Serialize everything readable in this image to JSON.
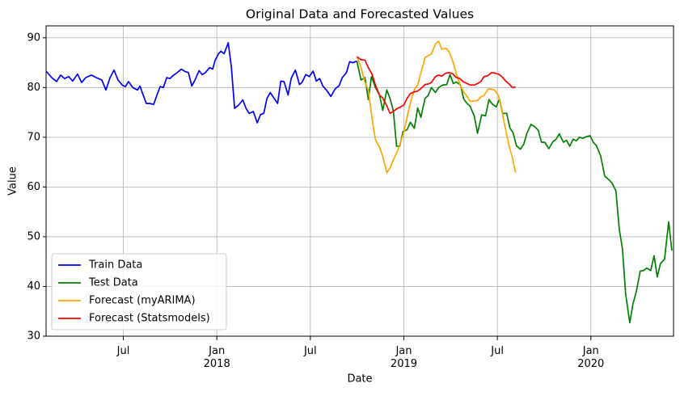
{
  "chart_data": {
    "type": "line",
    "title": "Original Data and Forecasted Values",
    "xlabel": "Date",
    "ylabel": "Value",
    "xlim": [
      2017.087,
      2020.442
    ],
    "ylim": [
      30,
      92.4
    ],
    "xticks": [
      {
        "value": 2017.5,
        "label": "Jul"
      },
      {
        "value": 2018.0,
        "label": "Jan\n2018"
      },
      {
        "value": 2018.5,
        "label": "Jul"
      },
      {
        "value": 2019.0,
        "label": "Jan\n2019"
      },
      {
        "value": 2019.5,
        "label": "Jul"
      },
      {
        "value": 2020.0,
        "label": "Jan\n2020"
      }
    ],
    "yticks": [
      30,
      40,
      50,
      60,
      70,
      80,
      90
    ],
    "grid": true,
    "legend": "lower left",
    "series": [
      {
        "name": "Train Data",
        "color": "#0000ff",
        "x": [
          2017.087,
          2017.117,
          2017.143,
          2017.165,
          2017.186,
          2017.208,
          2017.229,
          2017.255,
          2017.277,
          2017.299,
          2017.329,
          2017.355,
          2017.385,
          2017.407,
          2017.429,
          2017.45,
          2017.472,
          2017.494,
          2017.511,
          2017.528,
          2017.55,
          2017.576,
          2017.589,
          2017.606,
          2017.623,
          2017.641,
          2017.662,
          2017.68,
          2017.697,
          2017.714,
          2017.732,
          2017.749,
          2017.766,
          2017.788,
          2017.81,
          2017.831,
          2017.848,
          2017.866,
          2017.883,
          2017.905,
          2017.922,
          2017.939,
          2017.961,
          2017.978,
          2017.991,
          2018.009,
          2018.022,
          2018.039,
          2018.061,
          2018.078,
          2018.095,
          2018.117,
          2018.139,
          2018.156,
          2018.173,
          2018.195,
          2018.216,
          2018.234,
          2018.251,
          2018.268,
          2018.286,
          2018.303,
          2018.325,
          2018.342,
          2018.359,
          2018.381,
          2018.398,
          2018.42,
          2018.442,
          2018.455,
          2018.476,
          2018.494,
          2018.515,
          2018.532,
          2018.55,
          2018.567,
          2018.584,
          2018.61,
          2018.632,
          2018.654,
          2018.671,
          2018.693,
          2018.71,
          2018.727,
          2018.749
        ],
        "values": [
          83.3,
          82,
          81.2,
          82.5,
          81.8,
          82.2,
          81.3,
          82.7,
          81,
          82,
          82.5,
          82,
          81.5,
          79.5,
          82,
          83.5,
          81.5,
          80.5,
          80.2,
          81.2,
          80,
          79.5,
          80.3,
          78.5,
          76.8,
          76.8,
          76.6,
          78.5,
          80.2,
          80,
          82,
          81.8,
          82.4,
          83,
          83.7,
          83.2,
          83,
          80.3,
          81.5,
          83.4,
          82.6,
          83,
          84,
          83.7,
          85.5,
          86.8,
          87.3,
          86.8,
          89,
          84,
          75.8,
          76.5,
          77.5,
          75.8,
          74.8,
          75.2,
          72.9,
          74.6,
          74.8,
          77.8,
          79,
          78,
          76.8,
          81.3,
          81.2,
          78.5,
          81.9,
          83.5,
          80.6,
          81,
          82.6,
          82.2,
          83.3,
          81.3,
          81.8,
          80.3,
          79.6,
          78.2,
          79.7,
          80.4,
          82,
          83,
          85.2,
          85,
          85.3
        ]
      },
      {
        "name": "Test Data",
        "color": "#008000",
        "x": [
          2018.749,
          2018.771,
          2018.792,
          2018.81,
          2018.827,
          2018.848,
          2018.87,
          2018.887,
          2018.909,
          2018.926,
          2018.944,
          2018.961,
          2018.978,
          2018.996,
          2019.017,
          2019.035,
          2019.056,
          2019.074,
          2019.091,
          2019.113,
          2019.13,
          2019.147,
          2019.169,
          2019.186,
          2019.208,
          2019.229,
          2019.247,
          2019.264,
          2019.281,
          2019.303,
          2019.32,
          2019.338,
          2019.355,
          2019.377,
          2019.394,
          2019.416,
          2019.437,
          2019.455,
          2019.472,
          2019.494,
          2019.511,
          2019.528,
          2019.55,
          2019.567,
          2019.584,
          2019.602,
          2019.623,
          2019.641,
          2019.658,
          2019.68,
          2019.697,
          2019.719,
          2019.736,
          2019.753,
          2019.775,
          2019.797,
          2019.814,
          2019.831,
          2019.853,
          2019.87,
          2019.887,
          2019.905,
          2019.922,
          2019.939,
          2019.957,
          2019.974,
          2019.996,
          2020.013,
          2020.03,
          2020.052,
          2020.074,
          2020.095,
          2020.113,
          2020.134,
          2020.152,
          2020.169,
          2020.186,
          2020.208,
          2020.225,
          2020.242,
          2020.264,
          2020.281,
          2020.299,
          2020.32,
          2020.338,
          2020.355,
          2020.372,
          2020.394,
          2020.416,
          2020.433
        ],
        "values": [
          85.3,
          81.5,
          82,
          77.6,
          82.2,
          80,
          78.5,
          75.4,
          79.5,
          77.8,
          75.3,
          68.2,
          68.2,
          71.2,
          71.5,
          73,
          71.8,
          75.9,
          74,
          77.8,
          78.4,
          80,
          79,
          80,
          80.5,
          80.6,
          82.6,
          80.8,
          81.1,
          80.5,
          77.7,
          76.8,
          76.2,
          74.2,
          70.8,
          74.5,
          74.3,
          77.6,
          76.7,
          76.1,
          77.7,
          74.8,
          74.8,
          71.9,
          70.9,
          68.3,
          67.6,
          68.6,
          70.8,
          72.6,
          72.2,
          71.4,
          69,
          69,
          67.7,
          69.1,
          69.6,
          70.7,
          69,
          69.4,
          68.2,
          69.6,
          69.3,
          70,
          69.8,
          70.1,
          70.3,
          69,
          68.3,
          66.3,
          62.2,
          61.5,
          60.8,
          59.2,
          51.5,
          47.5,
          38.5,
          32.7,
          36.5,
          38.8,
          43.1,
          43.2,
          43.7,
          43.2,
          46.2,
          41.9,
          44.6,
          45.5,
          53,
          47.2
        ]
      },
      {
        "name": "Forecast (myARIMA)",
        "color": "#ffa500",
        "x": [
          2018.749,
          2018.771,
          2018.792,
          2018.81,
          2018.831,
          2018.848,
          2018.87,
          2018.887,
          2018.909,
          2018.926,
          2018.944,
          2018.961,
          2018.978,
          2019.0,
          2019.017,
          2019.035,
          2019.056,
          2019.074,
          2019.095,
          2019.113,
          2019.13,
          2019.147,
          2019.169,
          2019.186,
          2019.203,
          2019.225,
          2019.242,
          2019.26,
          2019.281,
          2019.299,
          2019.316,
          2019.338,
          2019.355,
          2019.377,
          2019.394,
          2019.411,
          2019.429,
          2019.45,
          2019.468,
          2019.485,
          2019.506,
          2019.524,
          2019.545,
          2019.563,
          2019.58,
          2019.597
        ],
        "values": [
          86.2,
          84,
          81,
          79.5,
          73.5,
          69.5,
          68,
          66.2,
          62.9,
          63.8,
          65.5,
          66.8,
          68.5,
          71,
          74,
          77,
          79.6,
          80.5,
          83.5,
          86,
          86.4,
          86.7,
          88.8,
          89.3,
          87.7,
          87.9,
          87.2,
          85.5,
          82.8,
          80.7,
          79.3,
          78.2,
          77.2,
          77.3,
          77.4,
          78.1,
          78.4,
          79.7,
          79.7,
          79.5,
          78.4,
          75.3,
          71.4,
          68.2,
          66,
          62.9
        ]
      },
      {
        "name": "Forecast (Statsmodels)",
        "color": "#ff0000",
        "x": [
          2018.749,
          2018.771,
          2018.792,
          2018.81,
          2018.831,
          2018.848,
          2018.87,
          2018.887,
          2018.909,
          2018.926,
          2018.944,
          2018.961,
          2018.978,
          2019.0,
          2019.017,
          2019.035,
          2019.056,
          2019.074,
          2019.095,
          2019.113,
          2019.13,
          2019.147,
          2019.169,
          2019.186,
          2019.203,
          2019.225,
          2019.242,
          2019.26,
          2019.281,
          2019.299,
          2019.316,
          2019.338,
          2019.355,
          2019.377,
          2019.394,
          2019.411,
          2019.429,
          2019.45,
          2019.468,
          2019.485,
          2019.506,
          2019.524,
          2019.545,
          2019.563,
          2019.58,
          2019.597
        ],
        "values": [
          86.2,
          85.6,
          85.5,
          84,
          82.6,
          80.5,
          78.5,
          77.9,
          76.3,
          74.8,
          75.2,
          75.7,
          76,
          76.5,
          77.8,
          78.8,
          79.1,
          79.3,
          79.9,
          80.6,
          80.7,
          81,
          82.2,
          82.5,
          82.3,
          82.9,
          83,
          82.8,
          82,
          81.8,
          81.2,
          80.8,
          80.5,
          80.5,
          80.8,
          81.2,
          82.2,
          82.4,
          83,
          82.9,
          82.7,
          82.2,
          81.3,
          80.7,
          80,
          80.1
        ]
      }
    ]
  }
}
